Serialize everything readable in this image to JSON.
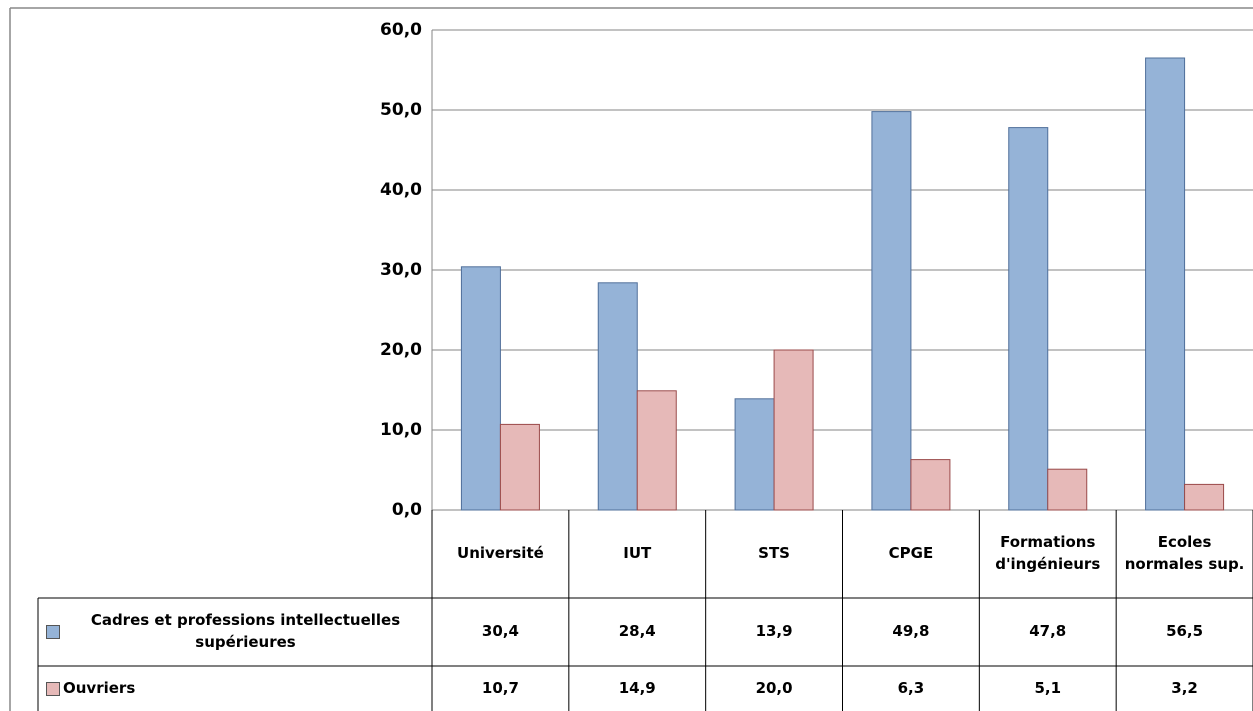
{
  "chart_data": {
    "type": "bar",
    "categories": [
      "Université",
      "IUT",
      "STS",
      "CPGE",
      "Formations d'ingénieurs",
      "Ecoles normales sup."
    ],
    "series": [
      {
        "name": "Cadres et professions intellectuelles supérieures",
        "color": "#95b3d7",
        "values": [
          30.4,
          28.4,
          13.9,
          49.8,
          47.8,
          56.5
        ],
        "value_labels": [
          "30,4",
          "28,4",
          "13,9",
          "49,8",
          "47,8",
          "56,5"
        ]
      },
      {
        "name": "Ouvriers",
        "color": "#e6b9b8",
        "values": [
          10.7,
          14.9,
          20.0,
          6.3,
          5.1,
          3.2
        ],
        "value_labels": [
          "10,7",
          "14,9",
          "20,0",
          "6,3",
          "5,1",
          "3,2"
        ]
      }
    ],
    "ylim": [
      0,
      60
    ],
    "yticks": [
      {
        "value": 0,
        "label": "0,0"
      },
      {
        "value": 10,
        "label": "10,0"
      },
      {
        "value": 20,
        "label": "20,0"
      },
      {
        "value": 30,
        "label": "30,0"
      },
      {
        "value": 40,
        "label": "40,0"
      },
      {
        "value": 50,
        "label": "50,0"
      },
      {
        "value": 60,
        "label": "60,0"
      }
    ],
    "grid": true
  }
}
